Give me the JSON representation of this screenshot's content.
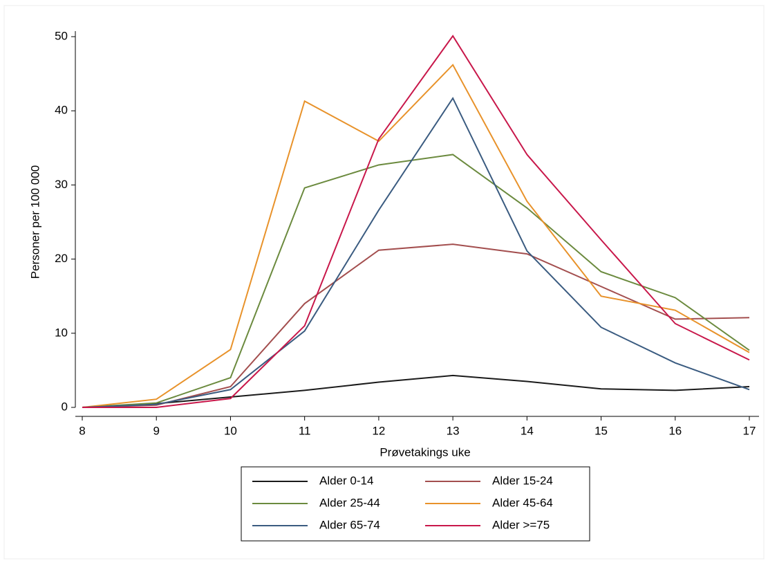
{
  "chart_data": {
    "type": "line",
    "x_label": "Prøvetakings uke",
    "y_label": "Personer per 100 000",
    "x": [
      8,
      9,
      10,
      11,
      12,
      13,
      14,
      15,
      16,
      17
    ],
    "xlim": [
      8,
      17
    ],
    "xticks": [
      8,
      9,
      10,
      11,
      12,
      13,
      14,
      15,
      16,
      17
    ],
    "ylim": [
      0,
      50
    ],
    "yticks": [
      0,
      10,
      20,
      30,
      40,
      50
    ],
    "grid": false,
    "legend": "bottom",
    "series": [
      {
        "name": "Alder 0-14",
        "color": "#1a1a1a",
        "values": [
          0,
          0.5,
          1.4,
          2.3,
          3.4,
          4.3,
          3.5,
          2.5,
          2.3,
          2.8
        ]
      },
      {
        "name": "Alder 15-24",
        "color": "#a34e4e",
        "values": [
          0,
          0.3,
          2.8,
          14,
          21.2,
          22,
          20.7,
          16.3,
          11.9,
          12.1
        ]
      },
      {
        "name": "Alder 25-44",
        "color": "#6b8a3e",
        "values": [
          0,
          0.6,
          4.0,
          29.6,
          32.7,
          34.1,
          26.9,
          18.3,
          14.8,
          7.7
        ]
      },
      {
        "name": "Alder 45-64",
        "color": "#e8922a",
        "values": [
          0,
          1.1,
          7.8,
          41.3,
          35.9,
          46.2,
          27.8,
          15.0,
          13.1,
          7.4
        ]
      },
      {
        "name": "Alder 65-74",
        "color": "#3a5b80",
        "values": [
          0,
          0.4,
          2.4,
          10.3,
          26.6,
          41.7,
          21.1,
          10.8,
          6.0,
          2.4
        ]
      },
      {
        "name": "Alder >=75",
        "color": "#c8174a",
        "values": [
          0,
          0,
          1.2,
          11.0,
          36.2,
          50.1,
          34.1,
          22.6,
          11.3,
          6.4
        ]
      }
    ]
  }
}
